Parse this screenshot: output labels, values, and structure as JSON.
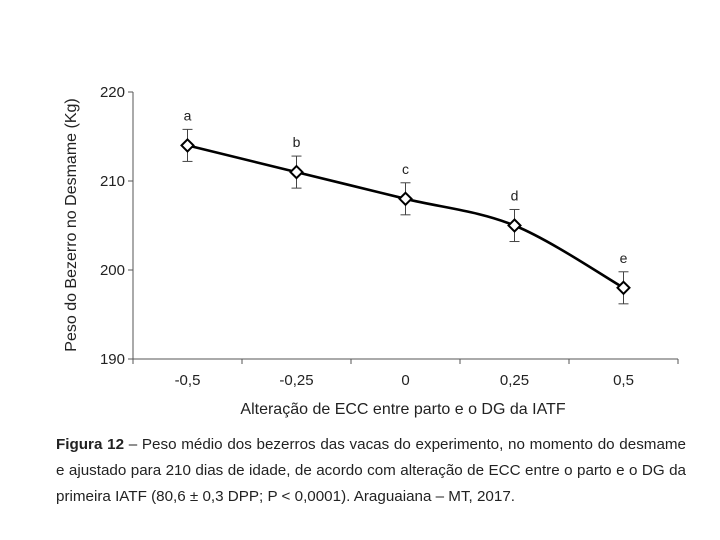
{
  "chart_data": {
    "type": "line",
    "title": "",
    "xlabel": "Alteração de ECC entre parto  e o DG da IATF",
    "ylabel": "Peso do Bezerro no Desmame (Kg)",
    "categories": [
      "-0,5",
      "-0,25",
      "0",
      "0,25",
      "0,5"
    ],
    "series": [
      {
        "name": "Peso médio",
        "values": [
          214,
          211,
          208,
          205,
          198
        ],
        "error": [
          1.8,
          1.8,
          1.8,
          1.8,
          1.8
        ],
        "labels": [
          "a",
          "b",
          "c",
          "d",
          "e"
        ]
      }
    ],
    "ylim": [
      190,
      220
    ],
    "yticks": [
      190,
      200,
      210,
      220
    ],
    "ytick_labels": [
      "190",
      "200",
      "210",
      "220"
    ],
    "grid": false,
    "legend": "none",
    "marker": "open-diamond",
    "line_color": "#000000"
  },
  "caption": {
    "label": "Figura 12",
    "text": " – Peso médio dos bezerros das vacas do experimento, no momento do desmame e ajustado para 210 dias de idade, de acordo com alteração de ECC entre o parto e o DG da primeira IATF (80,6 ± 0,3 DPP; P < 0,0001). Araguaiana – MT, 2017."
  }
}
